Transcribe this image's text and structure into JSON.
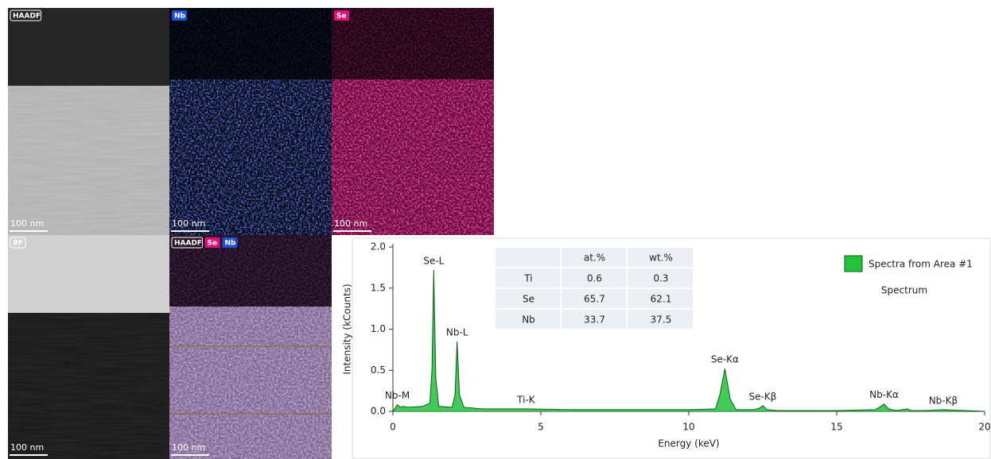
{
  "panels": [
    {
      "labels": [
        {
          "text": "HAADF",
          "color": "#ffffff"
        }
      ],
      "scale_bar": "100 nm"
    },
    {
      "labels": [
        {
          "text": "Nb",
          "color": "#1d4fd8"
        }
      ],
      "scale_bar": "100 nm"
    },
    {
      "labels": [
        {
          "text": "Se",
          "color": "#e0107a"
        }
      ],
      "scale_bar": "100 nm"
    },
    {
      "labels": [
        {
          "text": "BF",
          "color": "#ffffff"
        }
      ],
      "scale_bar": "100 nm"
    },
    {
      "labels": [
        {
          "text": "HAADF",
          "color": "#ffffff"
        },
        {
          "text": "Se",
          "color": "#e0107a"
        },
        {
          "text": "Nb",
          "color": "#1d4fd8"
        }
      ],
      "scale_bar": "100 nm"
    }
  ],
  "chart_data": {
    "type": "area",
    "x_label": "Energy (keV)",
    "y_label": "Intensity (kCounts)",
    "xlim": [
      0,
      20
    ],
    "xticks": [
      0,
      5,
      10,
      15,
      20
    ],
    "ylim": [
      0,
      2
    ],
    "yticks": [
      {
        "value": 0,
        "label": "0.0"
      },
      {
        "value": 0.5,
        "label": "0.5"
      },
      {
        "value": 1,
        "label": "1.0"
      },
      {
        "value": 1.5,
        "label": "1.5"
      },
      {
        "value": 2,
        "label": "2.0"
      }
    ],
    "x": [
      0,
      0.15,
      0.25,
      0.35,
      0.5,
      1.0,
      1.25,
      1.32,
      1.38,
      1.45,
      1.55,
      2.0,
      2.1,
      2.17,
      2.25,
      2.4,
      3,
      4.5,
      6,
      8,
      10,
      10.9,
      11.05,
      11.22,
      11.4,
      11.6,
      12.2,
      12.4,
      12.5,
      12.65,
      13,
      15,
      16.3,
      16.45,
      16.6,
      16.75,
      17,
      17.4,
      17.5,
      18,
      18.6,
      20
    ],
    "series": [
      {
        "name": "Spectra from Area #1",
        "color": "#22c23a",
        "values": [
          0.0,
          0.08,
          0.05,
          0.06,
          0.05,
          0.06,
          0.1,
          0.5,
          1.72,
          0.4,
          0.06,
          0.05,
          0.2,
          0.85,
          0.2,
          0.05,
          0.03,
          0.03,
          0.02,
          0.02,
          0.02,
          0.03,
          0.2,
          0.52,
          0.15,
          0.02,
          0.02,
          0.04,
          0.07,
          0.02,
          0.01,
          0.01,
          0.02,
          0.05,
          0.09,
          0.03,
          0.01,
          0.03,
          0.01,
          0.01,
          0.02,
          0.0
        ]
      }
    ],
    "legend_caption": "Spectrum",
    "annotations": [
      {
        "text": "Nb-M",
        "x": 0.15,
        "y": 0.08
      },
      {
        "text": "Se-L",
        "x": 1.38,
        "y": 1.72
      },
      {
        "text": "Nb-L",
        "x": 2.17,
        "y": 0.85
      },
      {
        "text": "Ti-K",
        "x": 4.5,
        "y": 0.03
      },
      {
        "text": "Se-Kα",
        "x": 11.22,
        "y": 0.52
      },
      {
        "text": "Se-Kβ",
        "x": 12.5,
        "y": 0.07
      },
      {
        "text": "Nb-Kα",
        "x": 16.6,
        "y": 0.09
      },
      {
        "text": "Nb-Kβ",
        "x": 18.6,
        "y": 0.02
      }
    ],
    "table": {
      "columns": [
        "at.%",
        "wt.%"
      ],
      "rows": [
        [
          "Ti",
          0.6,
          0.3
        ],
        [
          "Se",
          65.7,
          62.1
        ],
        [
          "Nb",
          33.7,
          37.5
        ]
      ]
    }
  }
}
